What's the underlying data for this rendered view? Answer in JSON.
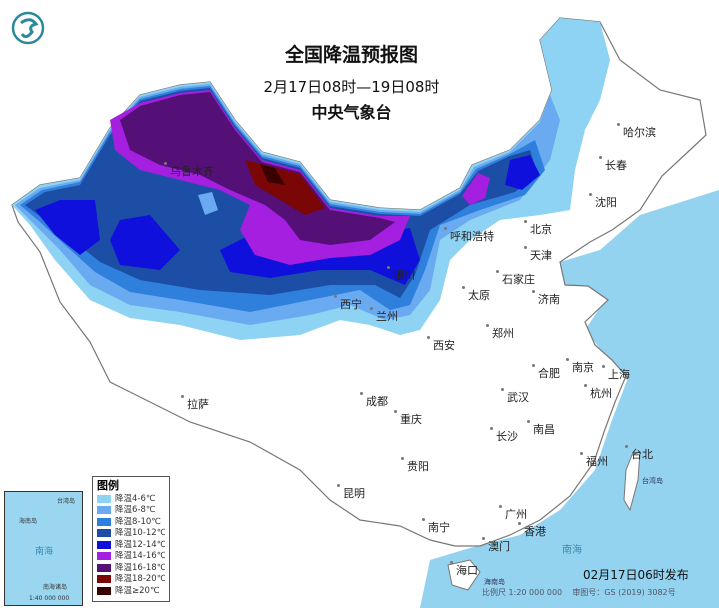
{
  "header": {
    "title": "全国降温预报图",
    "period": "2月17日08时—19日08时",
    "issuer": "中央气象台",
    "logo": "cma-logo"
  },
  "legend": {
    "title": "图例",
    "items": [
      {
        "label": "降温4-6℃",
        "color": "#8ed2f4"
      },
      {
        "label": "降温6-8℃",
        "color": "#6aaaf0"
      },
      {
        "label": "降温8-10℃",
        "color": "#2f7fdc"
      },
      {
        "label": "降温10-12℃",
        "color": "#1d4ea6"
      },
      {
        "label": "降温12-14℃",
        "color": "#1010dc"
      },
      {
        "label": "降温14-16℃",
        "color": "#a51fe0"
      },
      {
        "label": "降温16-18℃",
        "color": "#551078"
      },
      {
        "label": "降温18-20℃",
        "color": "#7a0606"
      },
      {
        "label": "降温≥20℃",
        "color": "#3a0000"
      }
    ]
  },
  "cities": [
    "乌鲁木齐",
    "拉萨",
    "西宁",
    "兰州",
    "银川",
    "呼和浩特",
    "北京",
    "天津",
    "石家庄",
    "太原",
    "济南",
    "郑州",
    "西安",
    "成都",
    "重庆",
    "武汉",
    "合肥",
    "南京",
    "上海",
    "杭州",
    "长沙",
    "南昌",
    "福州",
    "台北",
    "贵阳",
    "昆明",
    "南宁",
    "广州",
    "澳门",
    "香港",
    "海口",
    "哈尔滨",
    "长春",
    "沈阳"
  ],
  "labels": {
    "sea_south": "南海",
    "hainan": "海南岛",
    "taiwan": "台湾岛"
  },
  "inset": {
    "sea": "南海",
    "islands": "南海诸岛",
    "scale": "1:40 000 000",
    "hainan": "海南岛",
    "taiwan": "台湾岛"
  },
  "footer": {
    "issued": "02月17日06时发布",
    "scale": "比例尺 1:20 000 000",
    "approval": "审图号：GS (2019) 3082号"
  },
  "colors": {
    "sea": "#93d3f0",
    "land": "#ffffff",
    "border": "#888888"
  }
}
